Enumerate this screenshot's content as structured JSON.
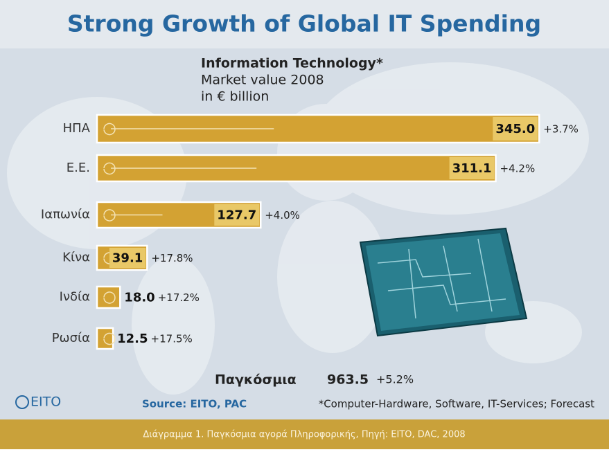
{
  "chart_data": {
    "type": "bar",
    "orientation": "horizontal",
    "title": "Strong Growth of Global IT Spending",
    "subtitle": [
      "Information Technology*",
      "Market value 2008",
      "in € billion"
    ],
    "categories": [
      "ΗΠΑ",
      "Ε.Ε.",
      "Ιαπωνία",
      "Κίνα",
      "Ινδία",
      "Ρωσία"
    ],
    "values": [
      345.0,
      311.1,
      127.7,
      39.1,
      18.0,
      12.5
    ],
    "value_labels": [
      "345.0",
      "311.1",
      "127.7",
      "39.1",
      "18.0",
      "12.5"
    ],
    "growth_labels": [
      "+3.7%",
      "+4.2%",
      "+4.0%",
      "+17.8%",
      "+17.2%",
      "+17.5%"
    ],
    "color": "#d3a233",
    "total": {
      "label": "Παγκόσμια",
      "value": "963.5",
      "growth": "+5.2%"
    },
    "logo": "EITO",
    "source": "Source: EITO, PAC",
    "footnote": "*Computer-Hardware, Software, IT-Services; Forecast",
    "caption": "Διάγραμμα 1. Παγκόσμια αγορά Πληροφορικής, Πηγή: EITO, DAC, 2008"
  }
}
